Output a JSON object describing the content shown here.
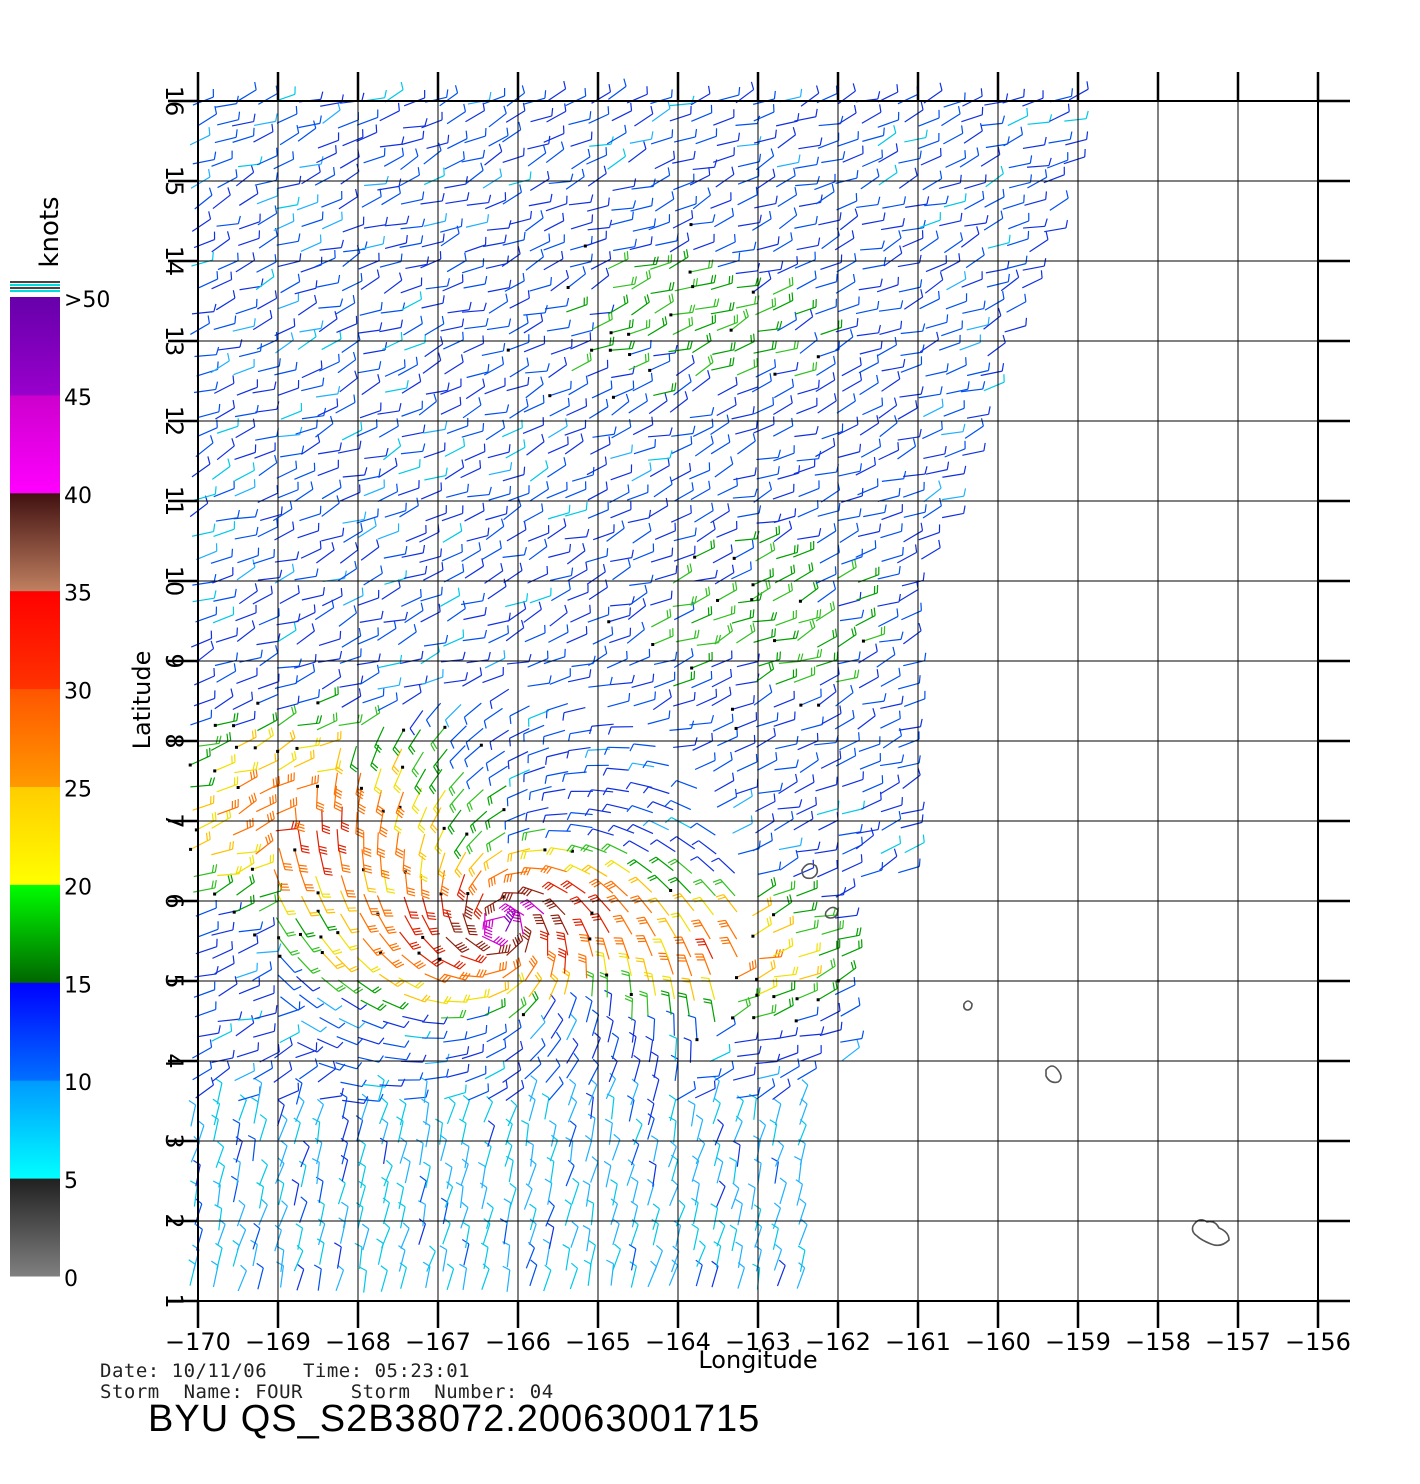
{
  "map": {
    "x_axis": {
      "label": "Longitude",
      "ticks": [
        "−170",
        "−169",
        "−168",
        "−167",
        "−166",
        "−165",
        "−164",
        "−163",
        "−162",
        "−161",
        "−160",
        "−159",
        "−158",
        "−157",
        "−156"
      ],
      "range": [
        -170,
        -156
      ]
    },
    "y_axis": {
      "label": "Latitude",
      "ticks": [
        "1",
        "2",
        "3",
        "4",
        "5",
        "6",
        "7",
        "8",
        "9",
        "10",
        "11",
        "12",
        "13",
        "14",
        "15",
        "16"
      ],
      "range": [
        1,
        16
      ]
    },
    "legend": {
      "unit": "knots",
      "labels": [
        ">50",
        "45",
        "40",
        "35",
        "30",
        "25",
        "20",
        "15",
        "10",
        "5",
        "0"
      ],
      "bands": [
        {
          "from": 0,
          "to": 5,
          "colors": [
            "#808080",
            "#202020"
          ]
        },
        {
          "from": 5,
          "to": 10,
          "colors": [
            "#00ffff",
            "#0099ff"
          ]
        },
        {
          "from": 10,
          "to": 15,
          "colors": [
            "#0070ff",
            "#0000ff"
          ]
        },
        {
          "from": 15,
          "to": 20,
          "colors": [
            "#006600",
            "#00ff00"
          ]
        },
        {
          "from": 20,
          "to": 25,
          "colors": [
            "#ffff00",
            "#ffcc00"
          ]
        },
        {
          "from": 25,
          "to": 30,
          "colors": [
            "#ff9900",
            "#ff5500"
          ]
        },
        {
          "from": 30,
          "to": 35,
          "colors": [
            "#ff3300",
            "#ff0000"
          ]
        },
        {
          "from": 35,
          "to": 40,
          "colors": [
            "#c08060",
            "#401010"
          ]
        },
        {
          "from": 40,
          "to": 45,
          "colors": [
            "#ff00ff",
            "#cc00cc"
          ]
        },
        {
          "from": 45,
          "to": 50,
          "colors": [
            "#9900cc",
            "#6600aa"
          ]
        }
      ]
    }
  },
  "info": {
    "date_line": "Date: 10/11/06   Time: 05:23:01",
    "storm_line": "Storm  Name: FOUR    Storm  Number: 04",
    "product_id": "BYU  QS_S2B38072.20063001715"
  }
}
